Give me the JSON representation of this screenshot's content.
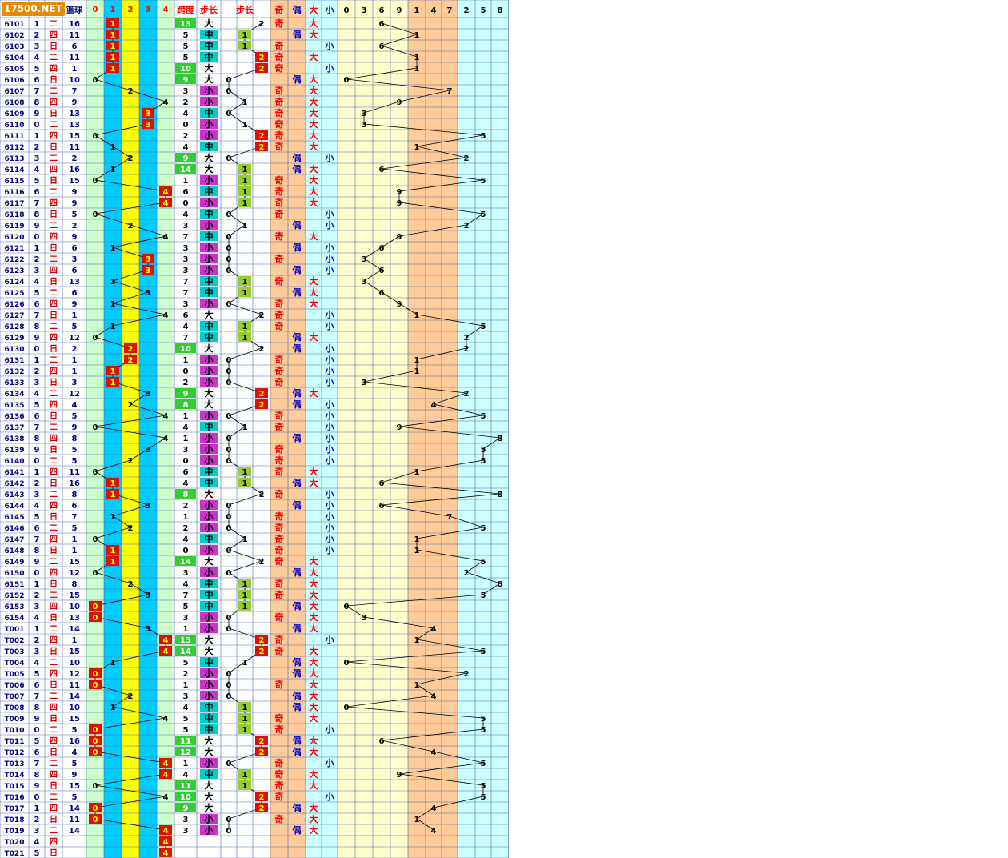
{
  "watermark": "17500.NET",
  "header": {
    "left": [
      "",
      "",
      "",
      "篮球"
    ],
    "mod5": [
      "0",
      "1",
      "2",
      "3",
      "4"
    ],
    "span_label": "跨度",
    "step_label_a": "步长",
    "step_label_b": "步长",
    "odd": "奇",
    "even": "偶",
    "big": "大",
    "small": "小",
    "digits": [
      "0",
      "3",
      "6",
      "9",
      "1",
      "4",
      "7",
      "2",
      "5",
      "8"
    ]
  },
  "week_names": {
    "四": "四",
    "日": "日",
    "二": "二"
  },
  "rows": [
    [
      "6101",
      "1",
      "二",
      "16"
    ],
    [
      "6102",
      "2",
      "四",
      "11"
    ],
    [
      "6103",
      "3",
      "日",
      "6"
    ],
    [
      "6104",
      "4",
      "二",
      "11"
    ],
    [
      "6105",
      "5",
      "四",
      "1"
    ],
    [
      "6106",
      "6",
      "日",
      "10"
    ],
    [
      "6107",
      "7",
      "二",
      "7"
    ],
    [
      "6108",
      "8",
      "四",
      "9"
    ],
    [
      "6109",
      "9",
      "日",
      "13"
    ],
    [
      "6110",
      "0",
      "二",
      "13"
    ],
    [
      "6111",
      "1",
      "四",
      "15"
    ],
    [
      "6112",
      "2",
      "日",
      "11"
    ],
    [
      "6113",
      "3",
      "二",
      "2"
    ],
    [
      "6114",
      "4",
      "四",
      "16"
    ],
    [
      "6115",
      "5",
      "日",
      "15"
    ],
    [
      "6116",
      "6",
      "二",
      "9"
    ],
    [
      "6117",
      "7",
      "四",
      "9"
    ],
    [
      "6118",
      "8",
      "日",
      "5"
    ],
    [
      "6119",
      "9",
      "二",
      "2"
    ],
    [
      "6120",
      "0",
      "四",
      "9"
    ],
    [
      "6121",
      "1",
      "日",
      "6"
    ],
    [
      "6122",
      "2",
      "二",
      "3"
    ],
    [
      "6123",
      "3",
      "四",
      "6"
    ],
    [
      "6124",
      "4",
      "日",
      "13"
    ],
    [
      "6125",
      "5",
      "二",
      "6"
    ],
    [
      "6126",
      "6",
      "四",
      "9"
    ],
    [
      "6127",
      "7",
      "日",
      "1"
    ],
    [
      "6128",
      "8",
      "二",
      "5"
    ],
    [
      "6129",
      "9",
      "四",
      "12"
    ],
    [
      "6130",
      "0",
      "日",
      "2"
    ],
    [
      "6131",
      "1",
      "二",
      "1"
    ],
    [
      "6132",
      "2",
      "四",
      "1"
    ],
    [
      "6133",
      "3",
      "日",
      "3"
    ],
    [
      "6134",
      "4",
      "二",
      "12"
    ],
    [
      "6135",
      "5",
      "四",
      "4"
    ],
    [
      "6136",
      "6",
      "日",
      "5"
    ],
    [
      "6137",
      "7",
      "二",
      "9"
    ],
    [
      "6138",
      "8",
      "四",
      "8"
    ],
    [
      "6139",
      "9",
      "日",
      "5"
    ],
    [
      "6140",
      "0",
      "二",
      "5"
    ],
    [
      "6141",
      "1",
      "四",
      "11"
    ],
    [
      "6142",
      "2",
      "日",
      "16"
    ],
    [
      "6143",
      "3",
      "二",
      "8"
    ],
    [
      "6144",
      "4",
      "四",
      "6"
    ],
    [
      "6145",
      "5",
      "日",
      "7"
    ],
    [
      "6146",
      "6",
      "二",
      "5"
    ],
    [
      "6147",
      "7",
      "四",
      "1"
    ],
    [
      "6148",
      "8",
      "日",
      "1"
    ],
    [
      "6149",
      "9",
      "二",
      "15"
    ],
    [
      "6150",
      "0",
      "四",
      "12"
    ],
    [
      "6151",
      "1",
      "日",
      "8"
    ],
    [
      "6152",
      "2",
      "二",
      "15"
    ],
    [
      "6153",
      "3",
      "四",
      "10"
    ],
    [
      "6154",
      "4",
      "日",
      "13"
    ],
    [
      "T001",
      "1",
      "二",
      "14"
    ],
    [
      "T002",
      "2",
      "四",
      "1"
    ],
    [
      "T003",
      "3",
      "日",
      "15"
    ],
    [
      "T004",
      "4",
      "二",
      "10"
    ],
    [
      "T005",
      "5",
      "四",
      "12"
    ],
    [
      "T006",
      "6",
      "日",
      "11"
    ],
    [
      "T007",
      "7",
      "二",
      "14"
    ],
    [
      "T008",
      "8",
      "四",
      "10"
    ],
    [
      "T009",
      "9",
      "日",
      "15"
    ],
    [
      "T010",
      "0",
      "二",
      "5"
    ],
    [
      "T011",
      "5",
      "四",
      "16"
    ],
    [
      "T012",
      "6",
      "日",
      "4"
    ],
    [
      "T013",
      "7",
      "二",
      "5"
    ],
    [
      "T014",
      "8",
      "四",
      "9"
    ],
    [
      "T015",
      "9",
      "日",
      "15"
    ],
    [
      "T016",
      "0",
      "二",
      "5"
    ],
    [
      "T017",
      "1",
      "四",
      "14"
    ],
    [
      "T018",
      "2",
      "日",
      "11"
    ],
    [
      "T019",
      "3",
      "二",
      "14"
    ],
    [
      "T020",
      "4",
      "四",
      ""
    ],
    [
      "T021",
      "5",
      "日",
      ""
    ]
  ],
  "mod5_values": [
    1,
    1,
    1,
    1,
    1,
    0,
    2,
    4,
    3,
    3,
    0,
    1,
    2,
    1,
    0,
    4,
    4,
    0,
    2,
    4,
    1,
    3,
    3,
    1,
    3,
    1,
    4,
    1,
    0,
    2,
    2,
    1,
    1,
    3,
    2,
    4,
    0,
    4,
    3,
    2,
    0,
    1,
    1,
    3,
    1,
    2,
    0,
    1,
    1,
    0,
    2,
    3,
    0,
    0,
    3,
    4,
    4,
    1,
    0,
    0,
    2,
    1,
    4,
    0,
    0,
    0,
    4,
    4,
    0,
    4,
    0,
    0,
    4,
    4,
    4
  ],
  "spans": [
    13,
    5,
    5,
    5,
    10,
    9,
    3,
    2,
    4,
    0,
    2,
    4,
    9,
    14,
    1,
    6,
    0,
    4,
    3,
    7,
    3,
    3,
    3,
    7,
    7,
    3,
    6,
    4,
    7,
    10,
    1,
    0,
    2,
    9,
    8,
    1,
    4,
    1,
    3,
    0,
    6,
    4,
    8,
    2,
    1,
    2,
    4,
    0,
    14,
    3,
    4,
    7,
    5,
    3,
    1,
    13,
    14,
    5,
    2,
    1,
    3,
    4,
    5,
    5,
    11,
    12,
    1,
    4,
    11,
    10,
    9,
    3,
    3
  ],
  "span_class": [
    "大",
    "中",
    "中",
    "中",
    "大",
    "大",
    "小",
    "小",
    "中",
    "小",
    "小",
    "中",
    "大",
    "大",
    "小",
    "中",
    "小",
    "中",
    "小",
    "中",
    "小",
    "小",
    "小",
    "中",
    "中",
    "小",
    "大",
    "中",
    "中",
    "大",
    "小",
    "小",
    "小",
    "大",
    "大",
    "小",
    "中",
    "小",
    "小",
    "小",
    "中",
    "中",
    "大",
    "小",
    "小",
    "小",
    "中",
    "小",
    "大",
    "小",
    "中",
    "中",
    "中",
    "小",
    "小",
    "大",
    "大",
    "中",
    "小",
    "小",
    "小",
    "中",
    "中",
    "中",
    "大",
    "大",
    "小",
    "中",
    "大",
    "大",
    "大",
    "小",
    "小"
  ],
  "steps": [
    2,
    1,
    1,
    2,
    2,
    0,
    0,
    1,
    0,
    1,
    2,
    2,
    0,
    1,
    1,
    1,
    1,
    0,
    1,
    0,
    0,
    0,
    0,
    1,
    1,
    0,
    2,
    1,
    1,
    2,
    0,
    0,
    0,
    2,
    2,
    0,
    1,
    0,
    0,
    0,
    1,
    1,
    2,
    0,
    0,
    0,
    1,
    0,
    2,
    0,
    1,
    1,
    1,
    0,
    0,
    2,
    2,
    1,
    0,
    0,
    0,
    1,
    1,
    1,
    2,
    2,
    0,
    1,
    1,
    2,
    2,
    0,
    0
  ],
  "parity": [
    "奇",
    "偶",
    "奇",
    "奇",
    "奇",
    "偶",
    "奇",
    "奇",
    "奇",
    "奇",
    "奇",
    "奇",
    "偶",
    "偶",
    "奇",
    "奇",
    "奇",
    "奇",
    "偶",
    "奇",
    "偶",
    "奇",
    "偶",
    "奇",
    "偶",
    "奇",
    "奇",
    "奇",
    "偶",
    "偶",
    "奇",
    "奇",
    "奇",
    "偶",
    "偶",
    "奇",
    "奇",
    "偶",
    "奇",
    "奇",
    "奇",
    "偶",
    "奇",
    "偶",
    "奇",
    "奇",
    "奇",
    "奇",
    "奇",
    "偶",
    "奇",
    "奇",
    "偶",
    "奇",
    "偶",
    "奇",
    "奇",
    "偶",
    "偶",
    "奇",
    "偶",
    "偶",
    "奇",
    "奇",
    "偶",
    "偶",
    "奇",
    "奇",
    "奇",
    "奇",
    "偶",
    "奇",
    "偶"
  ],
  "bigsmall": [
    "大",
    "大",
    "小",
    "大",
    "小",
    "大",
    "大",
    "大",
    "大",
    "大",
    "大",
    "大",
    "小",
    "大",
    "大",
    "大",
    "大",
    "小",
    "小",
    "大",
    "小",
    "小",
    "小",
    "大",
    "大",
    "大",
    "小",
    "小",
    "大",
    "小",
    "小",
    "小",
    "小",
    "大",
    "小",
    "小",
    "小",
    "小",
    "小",
    "小",
    "大",
    "大",
    "小",
    "小",
    "小",
    "小",
    "小",
    "小",
    "大",
    "大",
    "大",
    "大",
    "大",
    "大",
    "大",
    "小",
    "大",
    "大",
    "大",
    "大",
    "大",
    "大",
    "大",
    "小",
    "大",
    "大",
    "小",
    "大",
    "大",
    "小",
    "大",
    "大",
    "大"
  ],
  "digit_values": [
    6,
    1,
    6,
    1,
    1,
    0,
    7,
    9,
    3,
    3,
    5,
    1,
    2,
    6,
    5,
    9,
    9,
    5,
    2,
    9,
    6,
    3,
    6,
    3,
    6,
    9,
    1,
    5,
    2,
    2,
    1,
    1,
    3,
    2,
    4,
    5,
    9,
    8,
    5,
    5,
    1,
    6,
    8,
    6,
    7,
    5,
    1,
    1,
    5,
    2,
    8,
    5,
    0,
    3,
    4,
    1,
    5,
    0,
    2,
    1,
    4,
    0,
    5,
    5,
    6,
    4,
    5,
    9,
    5,
    5,
    4,
    1,
    4
  ]
}
